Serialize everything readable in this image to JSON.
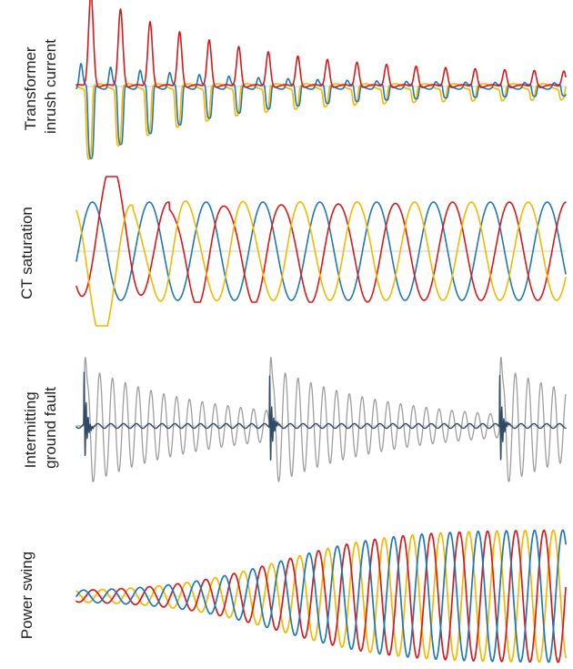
{
  "colors": {
    "red": "#d7191c",
    "blue": "#1f78b4",
    "yellow": "#f5b800",
    "dark": "#2e4a66",
    "grey": "#9e9e9e",
    "baseline": "#cfcfcf"
  },
  "chart_data": [
    {
      "type": "line",
      "label_lines": [
        "Transformer",
        "inrush current"
      ],
      "grid": false,
      "legend": "none",
      "series": [
        {
          "pattern": "inrush-positive",
          "color": "red"
        },
        {
          "pattern": "inrush-negative",
          "color": "blue"
        },
        {
          "pattern": "inrush-negative",
          "color": "yellow"
        }
      ]
    },
    {
      "type": "line",
      "label_lines": [
        "CT saturation"
      ],
      "grid": false,
      "legend": "none",
      "series": [
        {
          "pattern": "three-phase-sine-distorted",
          "color": "red"
        },
        {
          "pattern": "three-phase-sine",
          "color": "blue"
        },
        {
          "pattern": "three-phase-sine-distorted",
          "color": "yellow"
        }
      ]
    },
    {
      "type": "line",
      "label_lines": [
        "Intermitting",
        "ground fault"
      ],
      "grid": false,
      "legend": "none",
      "series": [
        {
          "pattern": "decaying-oscillation-bursts",
          "color": "grey"
        },
        {
          "pattern": "transient-spikes",
          "color": "dark"
        }
      ]
    },
    {
      "type": "line",
      "label_lines": [
        "Power swing"
      ],
      "grid": false,
      "legend": "none",
      "series": [
        {
          "pattern": "growing-three-phase-sine",
          "color": "blue"
        },
        {
          "pattern": "growing-three-phase-sine",
          "color": "red"
        },
        {
          "pattern": "growing-three-phase-sine",
          "color": "yellow"
        }
      ]
    }
  ]
}
